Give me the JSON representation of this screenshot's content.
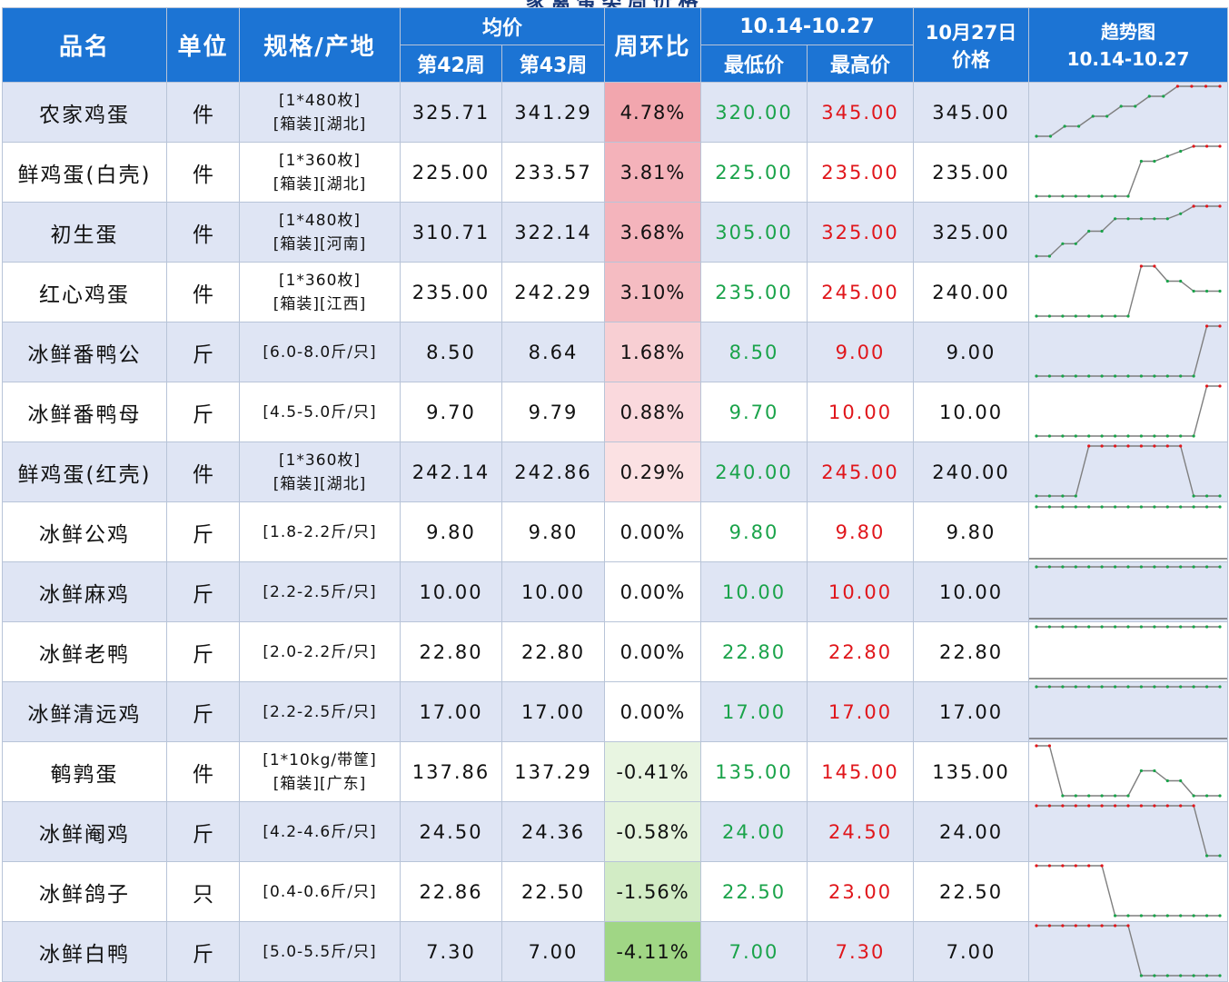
{
  "title": "家禽蛋类周价格",
  "columns": {
    "name": "品名",
    "unit": "单位",
    "spec": "规格/产地",
    "avg_group": "均价",
    "week42": "第42周",
    "week43": "第43周",
    "wow": "周环比",
    "range_group": "10.14-10.27",
    "low": "最低价",
    "high": "最高价",
    "price_line1": "10月27日",
    "price_line2": "价格",
    "trend_line1": "趋势图",
    "trend_line2": "10.14-10.27"
  },
  "colors": {
    "header_bg": "#1c74d4",
    "row_alt_bg": "#dfe5f4",
    "low_price": "#1aa34a",
    "high_price": "#e0161b",
    "spark_line": "#7f7f7f",
    "spark_low_marker": "#1aa34a",
    "spark_high_marker": "#e0161b"
  },
  "rows": [
    {
      "name": "农家鸡蛋",
      "unit": "件",
      "spec1": "[1*480枚]",
      "spec2": "[箱装][湖北]",
      "w42": "325.71",
      "w43": "341.29",
      "wow": "4.78%",
      "wow_value": 4.78,
      "low": "320.00",
      "high": "345.00",
      "price": "345.00",
      "trend": [
        320,
        320,
        325,
        325,
        330,
        330,
        335,
        335,
        340,
        340,
        345,
        345,
        345,
        345
      ]
    },
    {
      "name": "鲜鸡蛋(白壳)",
      "unit": "件",
      "spec1": "[1*360枚]",
      "spec2": "[箱装][湖北]",
      "w42": "225.00",
      "w43": "233.57",
      "wow": "3.81%",
      "wow_value": 3.81,
      "low": "225.00",
      "high": "235.00",
      "price": "235.00",
      "trend": [
        225,
        225,
        225,
        225,
        225,
        225,
        225,
        225,
        232,
        232,
        233,
        234,
        235,
        235,
        235
      ]
    },
    {
      "name": "初生蛋",
      "unit": "件",
      "spec1": "[1*480枚]",
      "spec2": "[箱装][河南]",
      "w42": "310.71",
      "w43": "322.14",
      "wow": "3.68%",
      "wow_value": 3.68,
      "low": "305.00",
      "high": "325.00",
      "price": "325.00",
      "trend": [
        305,
        305,
        310,
        310,
        315,
        315,
        320,
        320,
        320,
        320,
        320,
        322,
        325,
        325,
        325
      ]
    },
    {
      "name": "红心鸡蛋",
      "unit": "件",
      "spec1": "[1*360枚]",
      "spec2": "[箱装][江西]",
      "w42": "235.00",
      "w43": "242.29",
      "wow": "3.10%",
      "wow_value": 3.1,
      "low": "235.00",
      "high": "245.00",
      "price": "240.00",
      "trend": [
        235,
        235,
        235,
        235,
        235,
        235,
        235,
        235,
        245,
        245,
        242,
        242,
        240,
        240,
        240
      ]
    },
    {
      "name": "冰鲜番鸭公",
      "unit": "斤",
      "spec1": "[6.0-8.0斤/只]",
      "spec2": "",
      "w42": "8.50",
      "w43": "8.64",
      "wow": "1.68%",
      "wow_value": 1.68,
      "low": "8.50",
      "high": "9.00",
      "price": "9.00",
      "trend": [
        8.5,
        8.5,
        8.5,
        8.5,
        8.5,
        8.5,
        8.5,
        8.5,
        8.5,
        8.5,
        8.5,
        8.5,
        8.5,
        9.0,
        9.0
      ]
    },
    {
      "name": "冰鲜番鸭母",
      "unit": "斤",
      "spec1": "[4.5-5.0斤/只]",
      "spec2": "",
      "w42": "9.70",
      "w43": "9.79",
      "wow": "0.88%",
      "wow_value": 0.88,
      "low": "9.70",
      "high": "10.00",
      "price": "10.00",
      "trend": [
        9.7,
        9.7,
        9.7,
        9.7,
        9.7,
        9.7,
        9.7,
        9.7,
        9.7,
        9.7,
        9.7,
        9.7,
        9.7,
        10.0,
        10.0
      ]
    },
    {
      "name": "鲜鸡蛋(红壳)",
      "unit": "件",
      "spec1": "[1*360枚]",
      "spec2": "[箱装][湖北]",
      "w42": "242.14",
      "w43": "242.86",
      "wow": "0.29%",
      "wow_value": 0.29,
      "low": "240.00",
      "high": "245.00",
      "price": "240.00",
      "trend": [
        240,
        240,
        240,
        240,
        245,
        245,
        245,
        245,
        245,
        245,
        245,
        245,
        240,
        240,
        240
      ]
    },
    {
      "name": "冰鲜公鸡",
      "unit": "斤",
      "spec1": "[1.8-2.2斤/只]",
      "spec2": "",
      "w42": "9.80",
      "w43": "9.80",
      "wow": "0.00%",
      "wow_value": 0.0,
      "low": "9.80",
      "high": "9.80",
      "price": "9.80",
      "trend": [
        9.8,
        9.8,
        9.8,
        9.8,
        9.8,
        9.8,
        9.8,
        9.8,
        9.8,
        9.8,
        9.8,
        9.8,
        9.8,
        9.8,
        9.8
      ]
    },
    {
      "name": "冰鲜麻鸡",
      "unit": "斤",
      "spec1": "[2.2-2.5斤/只]",
      "spec2": "",
      "w42": "10.00",
      "w43": "10.00",
      "wow": "0.00%",
      "wow_value": 0.0,
      "low": "10.00",
      "high": "10.00",
      "price": "10.00",
      "trend": [
        10,
        10,
        10,
        10,
        10,
        10,
        10,
        10,
        10,
        10,
        10,
        10,
        10,
        10,
        10
      ]
    },
    {
      "name": "冰鲜老鸭",
      "unit": "斤",
      "spec1": "[2.0-2.2斤/只]",
      "spec2": "",
      "w42": "22.80",
      "w43": "22.80",
      "wow": "0.00%",
      "wow_value": 0.0,
      "low": "22.80",
      "high": "22.80",
      "price": "22.80",
      "trend": [
        22.8,
        22.8,
        22.8,
        22.8,
        22.8,
        22.8,
        22.8,
        22.8,
        22.8,
        22.8,
        22.8,
        22.8,
        22.8,
        22.8,
        22.8
      ]
    },
    {
      "name": "冰鲜清远鸡",
      "unit": "斤",
      "spec1": "[2.2-2.5斤/只]",
      "spec2": "",
      "w42": "17.00",
      "w43": "17.00",
      "wow": "0.00%",
      "wow_value": 0.0,
      "low": "17.00",
      "high": "17.00",
      "price": "17.00",
      "trend": [
        17,
        17,
        17,
        17,
        17,
        17,
        17,
        17,
        17,
        17,
        17,
        17,
        17,
        17,
        17
      ]
    },
    {
      "name": "鹌鹑蛋",
      "unit": "件",
      "spec1": "[1*10kg/带筐]",
      "spec2": "[箱装][广东]",
      "w42": "137.86",
      "w43": "137.29",
      "wow": "-0.41%",
      "wow_value": -0.41,
      "low": "135.00",
      "high": "145.00",
      "price": "135.00",
      "trend": [
        145,
        145,
        135,
        135,
        135,
        135,
        135,
        135,
        140,
        140,
        138,
        138,
        135,
        135,
        135
      ]
    },
    {
      "name": "冰鲜阉鸡",
      "unit": "斤",
      "spec1": "[4.2-4.6斤/只]",
      "spec2": "",
      "w42": "24.50",
      "w43": "24.36",
      "wow": "-0.58%",
      "wow_value": -0.58,
      "low": "24.00",
      "high": "24.50",
      "price": "24.00",
      "trend": [
        24.5,
        24.5,
        24.5,
        24.5,
        24.5,
        24.5,
        24.5,
        24.5,
        24.5,
        24.5,
        24.5,
        24.5,
        24.5,
        24.0,
        24.0
      ]
    },
    {
      "name": "冰鲜鸽子",
      "unit": "只",
      "spec1": "[0.4-0.6斤/只]",
      "spec2": "",
      "w42": "22.86",
      "w43": "22.50",
      "wow": "-1.56%",
      "wow_value": -1.56,
      "low": "22.50",
      "high": "23.00",
      "price": "22.50",
      "trend": [
        23,
        23,
        23,
        23,
        23,
        23,
        22.5,
        22.5,
        22.5,
        22.5,
        22.5,
        22.5,
        22.5,
        22.5,
        22.5
      ]
    },
    {
      "name": "冰鲜白鸭",
      "unit": "斤",
      "spec1": "[5.0-5.5斤/只]",
      "spec2": "",
      "w42": "7.30",
      "w43": "7.00",
      "wow": "-4.11%",
      "wow_value": -4.11,
      "low": "7.00",
      "high": "7.30",
      "price": "7.00",
      "trend": [
        7.3,
        7.3,
        7.3,
        7.3,
        7.3,
        7.3,
        7.3,
        7.3,
        7.0,
        7.0,
        7.0,
        7.0,
        7.0,
        7.0,
        7.0
      ]
    }
  ]
}
